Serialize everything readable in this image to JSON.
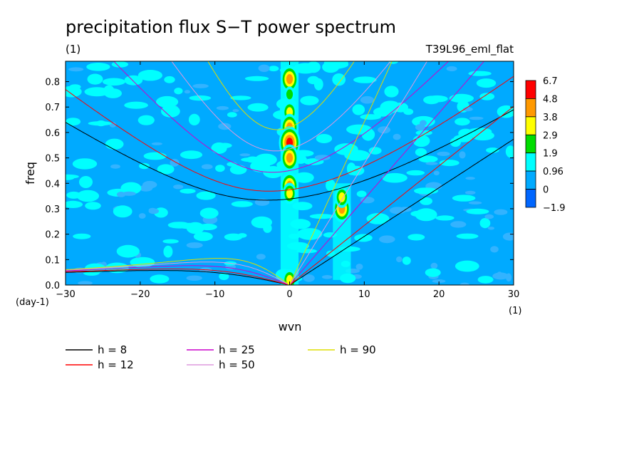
{
  "chart_data": {
    "type": "heatmap",
    "title": "precipitation flux S−T power spectrum",
    "subtitle_left": "(1)",
    "subtitle_right": "T39L96_eml_flat",
    "xlabel": "wvn",
    "ylabel": "freq",
    "x_unit": "(1)",
    "y_unit": "(day-1)",
    "xlim": [
      -30,
      30
    ],
    "ylim": [
      0,
      0.88
    ],
    "xticks": [
      -30,
      -20,
      -10,
      0,
      10,
      20,
      30
    ],
    "xtick_labels": [
      "−30",
      "−20",
      "−10",
      "0",
      "10",
      "20",
      "30"
    ],
    "yticks": [
      0.0,
      0.1,
      0.2,
      0.3,
      0.4,
      0.5,
      0.6,
      0.7,
      0.8
    ],
    "ytick_labels": [
      "0.0",
      "0.1",
      "0.2",
      "0.3",
      "0.4",
      "0.5",
      "0.6",
      "0.7",
      "0.8"
    ],
    "colorbar": {
      "labels": [
        "6.7",
        "4.8",
        "3.8",
        "2.9",
        "1.9",
        "0.96",
        "0",
        "−1.9"
      ],
      "colors": [
        "#ff0000",
        "#ff9900",
        "#ffff00",
        "#00dd00",
        "#00ffff",
        "#00aaff",
        "#0066ff"
      ]
    },
    "hotspots": [
      {
        "x": 0,
        "y": 0.81,
        "level": 5
      },
      {
        "x": 0,
        "y": 0.75,
        "level": 3
      },
      {
        "x": 0,
        "y": 0.68,
        "level": 4
      },
      {
        "x": 0,
        "y": 0.62,
        "level": 5
      },
      {
        "x": 0,
        "y": 0.56,
        "level": 6
      },
      {
        "x": 0,
        "y": 0.5,
        "level": 5
      },
      {
        "x": 0,
        "y": 0.39,
        "level": 5
      },
      {
        "x": 0,
        "y": 0.36,
        "level": 4
      },
      {
        "x": 0,
        "y": 0.02,
        "level": 4
      },
      {
        "x": 7,
        "y": 0.3,
        "level": 5
      },
      {
        "x": 7,
        "y": 0.345,
        "level": 4
      }
    ],
    "series": [
      {
        "name": "h =  8",
        "h": 8,
        "color": "#000000"
      },
      {
        "name": "h = 12",
        "h": 12,
        "color": "#ff0000"
      },
      {
        "name": "h = 25",
        "h": 25,
        "color": "#cc00cc"
      },
      {
        "name": "h = 50",
        "h": 50,
        "color": "#dd99dd"
      },
      {
        "name": "h = 90",
        "h": 90,
        "color": "#dddd00"
      }
    ]
  }
}
